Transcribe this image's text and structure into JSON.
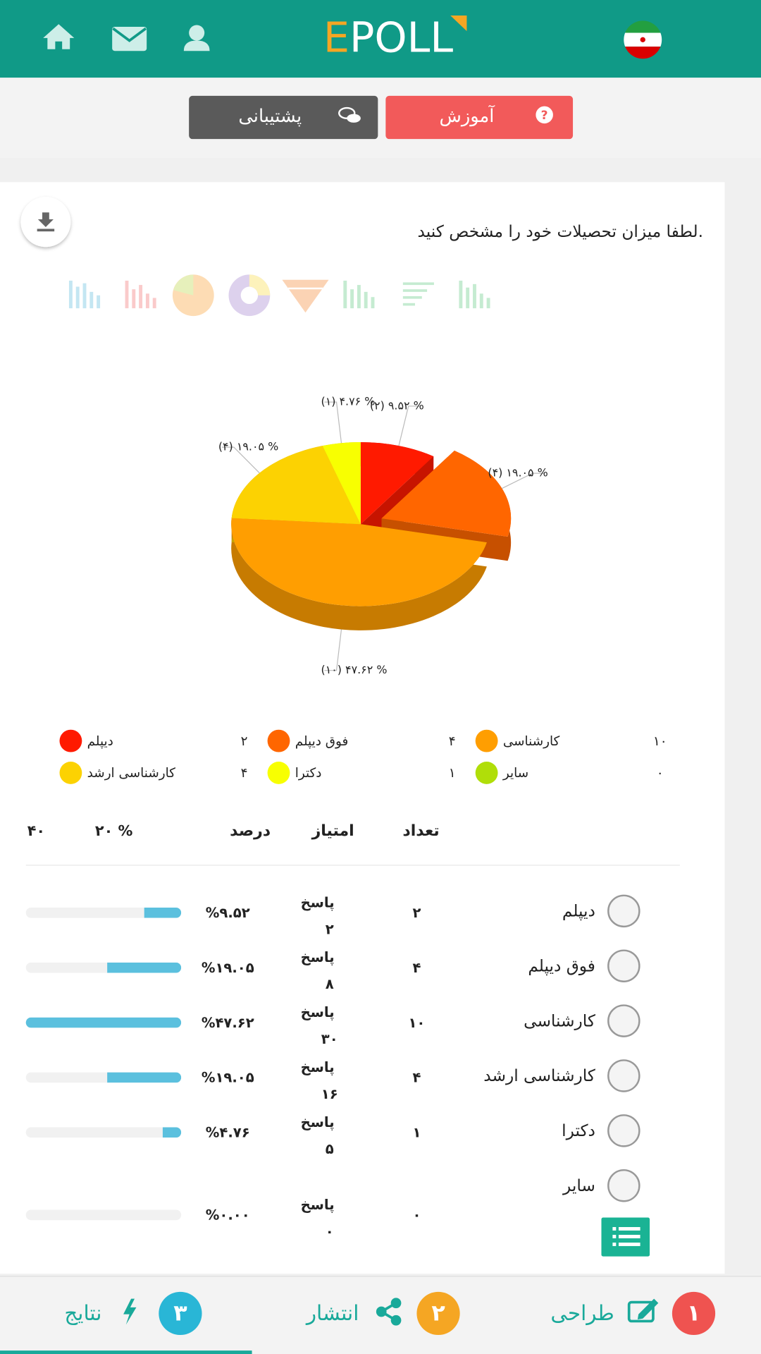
{
  "header": {
    "logo_first": "E",
    "logo_rest": "POLL"
  },
  "buttons": {
    "tutorial": "آموزش",
    "support": "پشتیبانی"
  },
  "question": "لطفا میزان تحصیلات خود را مشخص کنید.",
  "chart_data": {
    "type": "pie",
    "categories": [
      "دیپلم",
      "فوق دیپلم",
      "کارشناسی",
      "کارشناسی ارشد",
      "دکترا",
      "سایر"
    ],
    "values": [
      9.52,
      19.05,
      47.62,
      19.05,
      4.76,
      0
    ],
    "value_labels": [
      "(۲) ۹.۵۲ %",
      "(۴) ۱۹.۰۵ %",
      "(۱۰) ۴۷.۶۲ %",
      "(۴) ۱۹.۰۵ %",
      "(۱) ۴.۷۶ %",
      null
    ],
    "colors": [
      "#ff1a00",
      "#ff6600",
      "#ff9e01",
      "#fcd202",
      "#f8ff01",
      "#b0de09"
    ]
  },
  "results": {
    "headers": [
      "تعداد",
      "امتیاز",
      "درصد"
    ],
    "xlim": [
      0,
      40
    ],
    "xticks": [
      {
        "value": 40,
        "label": "۴۰"
      },
      {
        "value": 20,
        "label": "۲۰ %"
      }
    ],
    "rows": [
      {
        "name": "دیپلم",
        "count": "۲",
        "score_word": "پاسخ",
        "score": "۲",
        "percent": 9.52,
        "percent_label": "%۹.۵۲"
      },
      {
        "name": "فوق دیپلم",
        "count": "۴",
        "score_word": "پاسخ",
        "score": "۸",
        "percent": 19.05,
        "percent_label": "%۱۹.۰۵"
      },
      {
        "name": "کارشناسی",
        "count": "۱۰",
        "score_word": "پاسخ",
        "score": "۳۰",
        "percent": 47.62,
        "percent_label": "%۴۷.۶۲"
      },
      {
        "name": "کارشناسی ارشد",
        "count": "۴",
        "score_word": "پاسخ",
        "score": "۱۶",
        "percent": 19.05,
        "percent_label": "%۱۹.۰۵"
      },
      {
        "name": "دکترا",
        "count": "۱",
        "score_word": "پاسخ",
        "score": "۵",
        "percent": 4.76,
        "percent_label": "%۴.۷۶"
      },
      {
        "name": "سایر",
        "count": "۰",
        "score_word": "پاسخ",
        "score": "۰",
        "percent": 0,
        "percent_label": "%۰.۰۰"
      }
    ]
  },
  "steps": [
    {
      "number": "۱",
      "label": "طراحی"
    },
    {
      "number": "۲",
      "label": "انتشار"
    },
    {
      "number": "۳",
      "label": "نتایج"
    }
  ]
}
